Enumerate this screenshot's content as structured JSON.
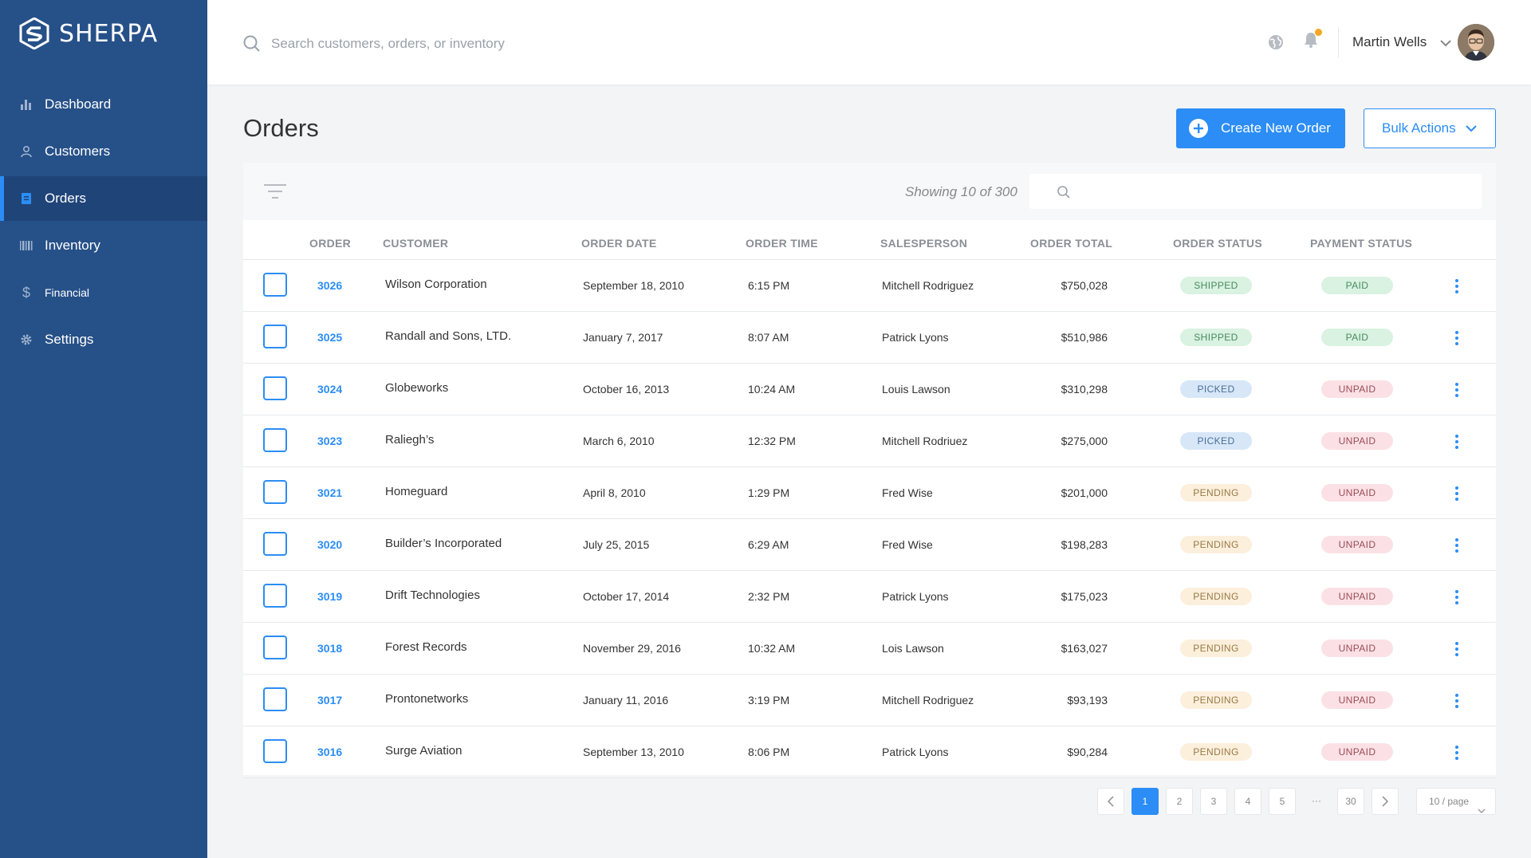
{
  "brand": {
    "name": "SHERPA"
  },
  "sidebar": {
    "items": [
      {
        "label": "Dashboard",
        "icon": "bar-chart-icon",
        "active": false
      },
      {
        "label": "Customers",
        "icon": "user-icon",
        "active": false
      },
      {
        "label": "Orders",
        "icon": "orders-icon",
        "active": true
      },
      {
        "label": "Inventory",
        "icon": "barcode-icon",
        "active": false
      },
      {
        "label": "Financial",
        "icon": "dollar-icon",
        "active": false
      },
      {
        "label": "Settings",
        "icon": "gear-icon",
        "active": false
      }
    ]
  },
  "header": {
    "search_placeholder": "Search customers, orders, or inventory",
    "user_name": "Martin Wells",
    "has_notification": true
  },
  "page": {
    "title": "Orders",
    "create_button": "Create New Order",
    "bulk_button": "Bulk Actions"
  },
  "table": {
    "showing_text": "Showing 10 of  300",
    "columns": [
      "ORDER",
      "CUSTOMER",
      "ORDER DATE",
      "ORDER TIME",
      "SALESPERSON",
      "ORDER TOTAL",
      "ORDER STATUS",
      "PAYMENT STATUS"
    ],
    "rows": [
      {
        "order": "3026",
        "customer": "Wilson Corporation",
        "date": "September 18, 2010",
        "time": "6:15 PM",
        "salesperson": "Mitchell Rodriguez",
        "total": "$750,028",
        "order_status": "SHIPPED",
        "payment_status": "PAID"
      },
      {
        "order": "3025",
        "customer": "Randall and Sons, LTD.",
        "date": "January 7, 2017",
        "time": "8:07 AM",
        "salesperson": "Patrick Lyons",
        "total": "$510,986",
        "order_status": "SHIPPED",
        "payment_status": "PAID"
      },
      {
        "order": "3024",
        "customer": "Globeworks",
        "date": "October 16, 2013",
        "time": "10:24 AM",
        "salesperson": "Louis Lawson",
        "total": "$310,298",
        "order_status": "PICKED",
        "payment_status": "UNPAID"
      },
      {
        "order": "3023",
        "customer": "Raliegh’s",
        "date": "March 6, 2010",
        "time": "12:32 PM",
        "salesperson": "Mitchell Rodriuez",
        "total": "$275,000",
        "order_status": "PICKED",
        "payment_status": "UNPAID"
      },
      {
        "order": "3021",
        "customer": "Homeguard",
        "date": "April 8, 2010",
        "time": "1:29 PM",
        "salesperson": "Fred Wise",
        "total": "$201,000",
        "order_status": "PENDING",
        "payment_status": "UNPAID"
      },
      {
        "order": "3020",
        "customer": "Builder’s Incorporated",
        "date": "July 25, 2015",
        "time": "6:29 AM",
        "salesperson": "Fred Wise",
        "total": "$198,283",
        "order_status": "PENDING",
        "payment_status": "UNPAID"
      },
      {
        "order": "3019",
        "customer": "Drift Technologies",
        "date": "October 17, 2014",
        "time": "2:32 PM",
        "salesperson": "Patrick Lyons",
        "total": "$175,023",
        "order_status": "PENDING",
        "payment_status": "UNPAID"
      },
      {
        "order": "3018",
        "customer": "Forest Records",
        "date": "November 29, 2016",
        "time": "10:32 AM",
        "salesperson": "Lois Lawson",
        "total": "$163,027",
        "order_status": "PENDING",
        "payment_status": "UNPAID"
      },
      {
        "order": "3017",
        "customer": "Prontonetworks",
        "date": "January 11, 2016",
        "time": "3:19 PM",
        "salesperson": "Mitchell Rodriguez",
        "total": "$93,193",
        "order_status": "PENDING",
        "payment_status": "UNPAID"
      },
      {
        "order": "3016",
        "customer": "Surge Aviation",
        "date": "September  13, 2010",
        "time": "8:06 PM",
        "salesperson": "Patrick Lyons",
        "total": "$90,284",
        "order_status": "PENDING",
        "payment_status": "UNPAID"
      }
    ]
  },
  "status_colors": {
    "SHIPPED": {
      "bg": "#d9f2e1",
      "fg": "#4a8a5f"
    },
    "PAID": {
      "bg": "#d9f2e1",
      "fg": "#4a8a5f"
    },
    "PICKED": {
      "bg": "#d7e7f8",
      "fg": "#4a6f97"
    },
    "PENDING": {
      "bg": "#fcefdc",
      "fg": "#9a7a45"
    },
    "UNPAID": {
      "bg": "#fbe1e5",
      "fg": "#9a4c57"
    }
  },
  "pagination": {
    "pages": [
      "1",
      "2",
      "3",
      "4",
      "5",
      "···",
      "30"
    ],
    "current": "1",
    "per_page": "10 / page"
  },
  "colors": {
    "accent": "#2b8df5",
    "sidebar": "#265088"
  }
}
